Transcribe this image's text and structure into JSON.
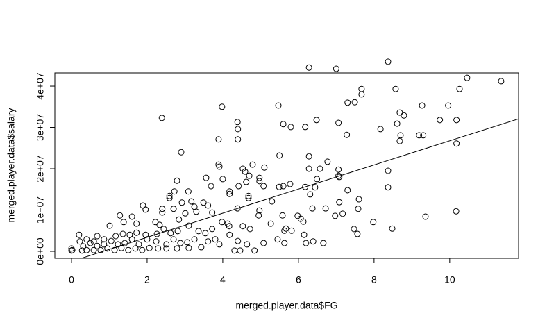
{
  "chart_data": {
    "type": "scatter",
    "xlabel": "merged.player.data$FG",
    "ylabel": "merged.player.data$salary",
    "xlim": [
      -0.44,
      11.82
    ],
    "ylim": [
      -1680000,
      43200000
    ],
    "xticks": [
      0,
      2,
      4,
      6,
      8,
      10
    ],
    "yticks": [
      {
        "value": 0,
        "label": "0e+00"
      },
      {
        "value": 10000000,
        "label": "1e+07"
      },
      {
        "value": 20000000,
        "label": "2e+07"
      },
      {
        "value": 30000000,
        "label": "3e+07"
      },
      {
        "value": 40000000,
        "label": "4e+07"
      }
    ],
    "color": "#000000",
    "regression": {
      "intercept": -2440000,
      "slope": 2920000
    },
    "x": [
      6.28,
      7.0,
      8.37,
      10.46,
      11.36,
      10.26,
      7.67,
      7.67,
      8.57,
      3.98,
      5.47,
      7.3,
      7.49,
      9.27,
      9.96,
      4.39,
      5.6,
      5.8,
      6.18,
      6.48,
      7.06,
      8.68,
      8.79,
      8.61,
      10.18,
      9.74,
      8.17,
      7.28,
      8.7,
      8.68,
      9.19,
      9.3,
      2.39,
      4.4,
      4.4,
      3.89,
      2.9,
      10.18,
      5.5,
      6.28,
      3.89,
      3.91,
      4.53,
      4.59,
      4.79,
      5.1,
      6.28,
      6.77,
      6.57,
      7.06,
      7.06,
      8.37,
      7.08,
      3.56,
      4.0,
      4.97,
      4.97,
      4.7,
      4.62,
      2.79,
      4.42,
      4.18,
      4.18,
      3.69,
      5.08,
      5.49,
      5.6,
      6.18,
      5.78,
      6.49,
      6.44,
      7.3,
      7.6,
      8.37,
      2.72,
      3.09,
      2.59,
      2.59,
      4.68,
      4.68,
      7.08,
      6.31,
      5.3,
      4.39,
      2.92,
      3.17,
      1.89,
      1.96,
      2.4,
      2.4,
      2.7,
      3.25,
      3.49,
      3.61,
      3.72,
      3.3,
      3.01,
      1.28,
      1.6,
      1.72,
      4.97,
      4.95,
      5.58,
      5.98,
      6.06,
      6.13,
      6.37,
      6.72,
      6.97,
      7.58,
      7.17,
      7.98,
      9.36,
      10.17,
      8.48,
      7.47,
      7.56,
      1.01,
      1.38,
      2.22,
      2.33,
      2.84,
      3.1,
      3.98,
      4.13,
      4.17,
      4.53,
      4.72,
      4.18,
      5.27,
      5.67,
      5.63,
      5.82,
      6.15,
      6.2,
      6.39,
      6.66,
      5.45,
      5.63,
      5.08,
      4.64,
      4.4,
      4.46,
      4.84,
      4.31,
      3.8,
      3.91,
      3.61,
      3.25,
      3.06,
      2.88,
      2.7,
      2.51,
      2.24,
      2.0,
      1.78,
      1.6,
      1.41,
      1.23,
      1.05,
      0.86,
      0.68,
      0.5,
      0.31,
      0.2,
      0.22,
      0,
      0,
      0.02,
      0.28,
      0.4,
      0.59,
      0.77,
      0.95,
      1.14,
      1.32,
      1.5,
      1.69,
      1.87,
      2.06,
      2.29,
      2.51,
      2.79,
      3.1,
      3.43,
      0.86,
      1.17,
      1.36,
      1.54,
      1.72,
      1.96,
      2.26,
      2.44,
      2.62,
      2.81,
      3.36,
      3.54,
      3.72,
      0.68,
      0.4,
      0.59
    ],
    "values": [
      44500000,
      44200000,
      45900000,
      42000000,
      41200000,
      39300000,
      39300000,
      38000000,
      39300000,
      35000000,
      35300000,
      36000000,
      36100000,
      35300000,
      35300000,
      31300000,
      30800000,
      30100000,
      30100000,
      31800000,
      31100000,
      33600000,
      32900000,
      30900000,
      31800000,
      31800000,
      29600000,
      28200000,
      28100000,
      26700000,
      28100000,
      28100000,
      32300000,
      29600000,
      27100000,
      27100000,
      24000000,
      26100000,
      23200000,
      23000000,
      21000000,
      20500000,
      20000000,
      19300000,
      21000000,
      20300000,
      20000000,
      21700000,
      20000000,
      19800000,
      18300000,
      19500000,
      18000000,
      17800000,
      17500000,
      17800000,
      17000000,
      18300000,
      16800000,
      17100000,
      15800000,
      14500000,
      13900000,
      15800000,
      15800000,
      15600000,
      15800000,
      15600000,
      16300000,
      17500000,
      15500000,
      14800000,
      12600000,
      15500000,
      14500000,
      14500000,
      13400000,
      12900000,
      13400000,
      12900000,
      11900000,
      13800000,
      12100000,
      10400000,
      11800000,
      12100000,
      11100000,
      10100000,
      10300000,
      9400000,
      10300000,
      10800000,
      11800000,
      11100000,
      9400000,
      9600000,
      9200000,
      8700000,
      8400000,
      6700000,
      9900000,
      8700000,
      8700000,
      8600000,
      7900000,
      7200000,
      10400000,
      10400000,
      8600000,
      10300000,
      9100000,
      7100000,
      8400000,
      9700000,
      5500000,
      5400000,
      4200000,
      6200000,
      7100000,
      7100000,
      6400000,
      7700000,
      6200000,
      7100000,
      6700000,
      6100000,
      6100000,
      5400000,
      4000000,
      6700000,
      5500000,
      5000000,
      5000000,
      4000000,
      2000000,
      2400000,
      2000000,
      2900000,
      2000000,
      2000000,
      1700000,
      2500000,
      200000,
      200000,
      200000,
      2900000,
      1700000,
      2400000,
      2900000,
      2200000,
      2000000,
      2900000,
      1700000,
      2400000,
      2900000,
      1700000,
      2900000,
      2000000,
      1700000,
      2500000,
      1700000,
      1300000,
      2000000,
      1200000,
      4000000,
      2400000,
      700000,
      200000,
      300000,
      200000,
      300000,
      300000,
      300000,
      700000,
      300000,
      800000,
      300000,
      700000,
      300000,
      800000,
      700000,
      700000,
      700000,
      800000,
      1000000,
      2900000,
      3700000,
      4200000,
      4000000,
      4500000,
      4000000,
      4200000,
      5400000,
      4400000,
      4900000,
      4900000,
      4400000,
      5400000,
      3700000,
      2900000,
      2400000
    ]
  }
}
